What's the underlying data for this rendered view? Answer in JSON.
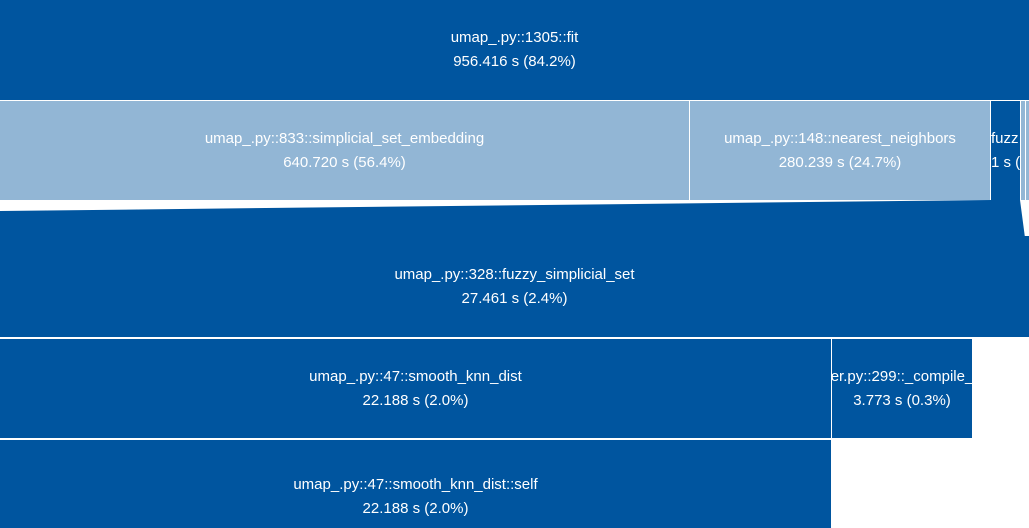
{
  "colors": {
    "dark": "#00559f",
    "light": "#92b6d5",
    "text": "#ffffff",
    "separator": "#ffffff"
  },
  "nodes": {
    "fit": {
      "name": "umap_.py::1305::fit",
      "time": "956.416 s (84.2%)"
    },
    "simplicial_set_embedding": {
      "name": "umap_.py::833::simplicial_set_embedding",
      "time": "640.720 s (56.4%)"
    },
    "nearest_neighbors": {
      "name": "umap_.py::148::nearest_neighbors",
      "time": "280.239 s (24.7%)"
    },
    "fuzzy_small": {
      "name": "fuzz",
      "time": "1 s ("
    },
    "fuzzy_simplicial_set": {
      "name": "umap_.py::328::fuzzy_simplicial_set",
      "time": "27.461 s (2.4%)"
    },
    "smooth_knn_dist": {
      "name": "umap_.py::47::smooth_knn_dist",
      "time": "22.188 s (2.0%)"
    },
    "compile": {
      "name": "er.py::299::_compile_",
      "time": "3.773 s (0.3%)"
    },
    "smooth_knn_dist_self": {
      "name": "umap_.py::47::smooth_knn_dist::self",
      "time": "22.188 s (2.0%)"
    }
  }
}
